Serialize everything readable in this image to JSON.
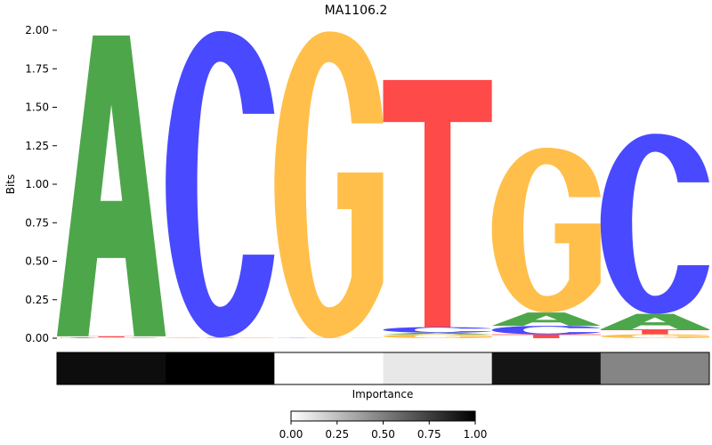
{
  "chart_data": [
    {
      "type": "sequence-logo",
      "title": "MA1106.2",
      "ylabel": "Bits",
      "ylim": [
        0,
        2.0
      ],
      "yticks": [
        "0.00",
        "0.25",
        "0.50",
        "0.75",
        "1.00",
        "1.25",
        "1.50",
        "1.75",
        "2.00"
      ],
      "colors": {
        "A": "#4ea64b",
        "C": "#4949ff",
        "G": "#ffbf4a",
        "T": "#ff4a4a"
      },
      "positions": [
        {
          "stack": [
            {
              "letter": "G",
              "bits": 0.003
            },
            {
              "letter": "C",
              "bits": 0.003
            },
            {
              "letter": "T",
              "bits": 0.007
            },
            {
              "letter": "A",
              "bits": 1.953
            }
          ]
        },
        {
          "stack": [
            {
              "letter": "G",
              "bits": 0.002
            },
            {
              "letter": "T",
              "bits": 0.003
            },
            {
              "letter": "C",
              "bits": 1.99
            }
          ]
        },
        {
          "stack": [
            {
              "letter": "T",
              "bits": 0.001
            },
            {
              "letter": "C",
              "bits": 0.001
            },
            {
              "letter": "G",
              "bits": 1.99
            }
          ]
        },
        {
          "stack": [
            {
              "letter": "G",
              "bits": 0.025
            },
            {
              "letter": "A",
              "bits": 0.011
            },
            {
              "letter": "C",
              "bits": 0.036
            },
            {
              "letter": "T",
              "bits": 1.605
            }
          ]
        },
        {
          "stack": [
            {
              "letter": "T",
              "bits": 0.025
            },
            {
              "letter": "C",
              "bits": 0.055
            },
            {
              "letter": "A",
              "bits": 0.087
            },
            {
              "letter": "G",
              "bits": 1.07
            }
          ]
        },
        {
          "stack": [
            {
              "letter": "G",
              "bits": 0.025
            },
            {
              "letter": "T",
              "bits": 0.033
            },
            {
              "letter": "A",
              "bits": 0.1
            },
            {
              "letter": "C",
              "bits": 1.17
            }
          ]
        }
      ]
    },
    {
      "type": "heatmap",
      "xlabel": "Importance",
      "values": [
        0.95,
        1.0,
        0.0,
        0.09,
        0.92,
        0.48
      ],
      "colorbar": {
        "range": [
          0,
          1
        ],
        "ticks": [
          "0.00",
          "0.25",
          "0.50",
          "0.75",
          "1.00"
        ]
      }
    }
  ]
}
